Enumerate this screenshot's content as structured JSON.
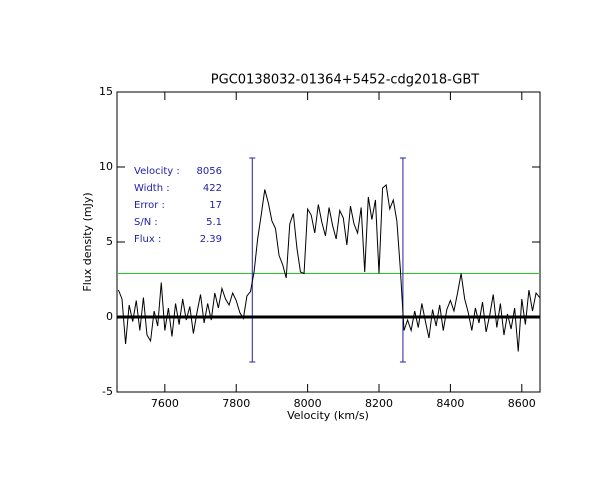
{
  "chart_data": {
    "type": "line",
    "title": "PGC0138032-01364+5452-cdg2018-GBT",
    "x_label": "Velocity (km/s)",
    "y_label": "Flux density (mJy)",
    "xlim": [
      7466,
      8651
    ],
    "ylim": [
      -5,
      15
    ],
    "xticks": [
      7600,
      7800,
      8000,
      8200,
      8400,
      8600
    ],
    "yticks": [
      -5,
      0,
      5,
      10,
      15
    ],
    "zero_line": 0,
    "threshold": {
      "value": 2.9,
      "color": "#22cc22"
    },
    "range_markers": {
      "x": [
        7845,
        8267
      ],
      "bottom": -3,
      "top": 10.6,
      "color": "#2222aa"
    },
    "annotations": [
      {
        "label": "Velocity :",
        "value": 8056
      },
      {
        "label": "Width :",
        "value": 422
      },
      {
        "label": "Error :",
        "value": 17
      },
      {
        "label": "S/N :",
        "value": 5.1
      },
      {
        "label": "Flux :",
        "value": 2.39
      }
    ],
    "annotation_color": "#2222aa",
    "series": [
      {
        "color": "#000000",
        "x": [
          7470,
          7480,
          7490,
          7500,
          7510,
          7520,
          7530,
          7540,
          7550,
          7560,
          7570,
          7580,
          7590,
          7600,
          7610,
          7620,
          7630,
          7640,
          7650,
          7660,
          7670,
          7680,
          7690,
          7700,
          7710,
          7720,
          7730,
          7740,
          7750,
          7760,
          7770,
          7780,
          7790,
          7800,
          7810,
          7820,
          7830,
          7840,
          7850,
          7860,
          7870,
          7880,
          7890,
          7900,
          7910,
          7920,
          7930,
          7940,
          7950,
          7960,
          7970,
          7980,
          7990,
          8000,
          8010,
          8020,
          8030,
          8040,
          8050,
          8060,
          8070,
          8080,
          8090,
          8100,
          8110,
          8120,
          8130,
          8140,
          8150,
          8160,
          8170,
          8180,
          8190,
          8200,
          8210,
          8220,
          8230,
          8240,
          8250,
          8260,
          8270,
          8280,
          8290,
          8300,
          8310,
          8320,
          8330,
          8340,
          8350,
          8360,
          8370,
          8380,
          8390,
          8400,
          8410,
          8420,
          8430,
          8440,
          8450,
          8460,
          8470,
          8480,
          8490,
          8500,
          8510,
          8520,
          8530,
          8540,
          8550,
          8560,
          8570,
          8580,
          8590,
          8600,
          8610,
          8620,
          8630,
          8640,
          8650
        ],
        "values": [
          1.8,
          1.2,
          -1.8,
          0.8,
          -0.3,
          1.1,
          -0.9,
          1.3,
          -1.2,
          -1.6,
          0.4,
          -0.6,
          2.3,
          -0.9,
          0.6,
          -1.3,
          0.9,
          -0.5,
          1.2,
          -0.2,
          0.7,
          -1.1,
          0.3,
          1.5,
          -0.4,
          0.9,
          -0.2,
          1.6,
          0.6,
          1.9,
          1.2,
          0.8,
          1.6,
          1.1,
          0.3,
          -0.1,
          1.4,
          1.7,
          3.0,
          5.2,
          6.8,
          8.5,
          7.6,
          6.4,
          5.9,
          4.1,
          3.5,
          2.6,
          6.2,
          6.9,
          4.6,
          3.0,
          2.9,
          7.2,
          6.8,
          5.6,
          7.5,
          6.3,
          5.4,
          7.3,
          6.1,
          5.2,
          7.1,
          6.6,
          4.8,
          7.4,
          6.2,
          5.6,
          7.3,
          3.0,
          8.0,
          6.5,
          7.8,
          2.9,
          8.6,
          8.8,
          7.2,
          7.8,
          6.4,
          3.1,
          -0.9,
          -0.2,
          -0.9,
          0.4,
          -0.7,
          0.9,
          -0.3,
          -1.4,
          0.5,
          -0.6,
          0.8,
          -0.9,
          0.5,
          1.1,
          0.4,
          1.6,
          2.9,
          1.2,
          0.3,
          -0.9,
          0.6,
          -0.4,
          1.0,
          -1.0,
          0.1,
          1.5,
          -0.7,
          0.9,
          -1.2,
          0.2,
          -0.8,
          0.6,
          -2.3,
          1.2,
          -0.5,
          1.8,
          0.4,
          1.6,
          1.3
        ]
      }
    ]
  }
}
